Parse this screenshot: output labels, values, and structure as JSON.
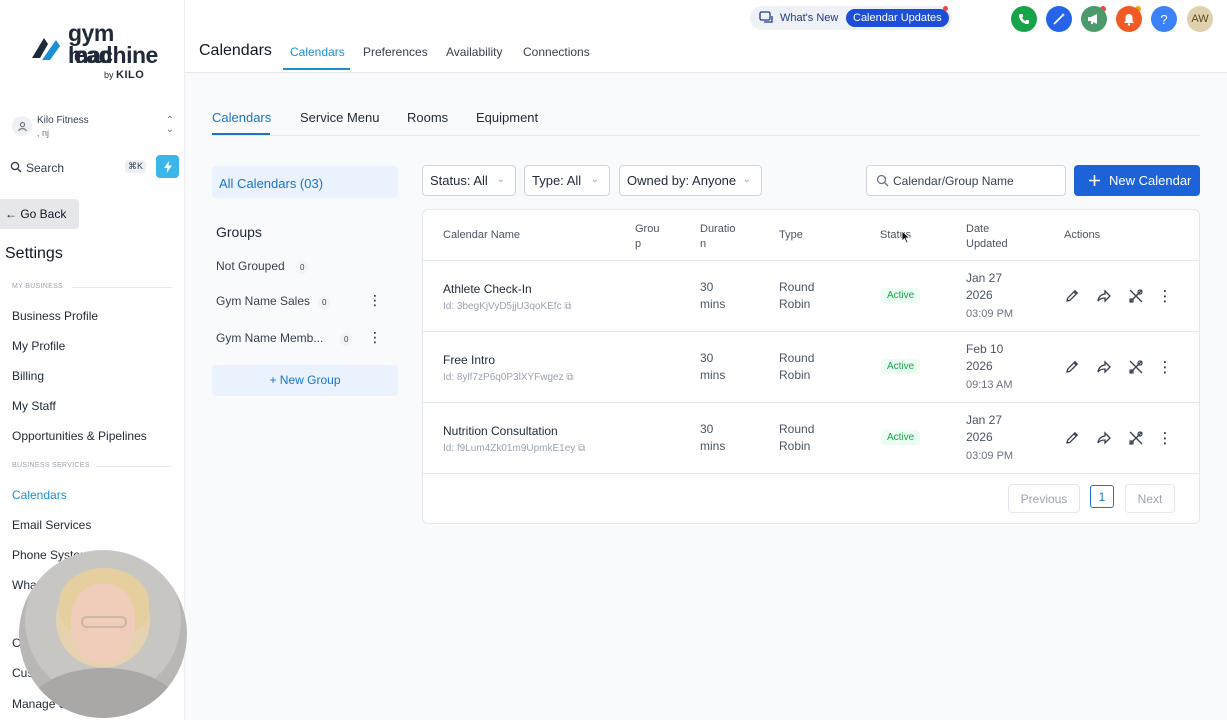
{
  "brand": {
    "line1": "gym lead",
    "line2": "machine",
    "by": "by",
    "kilo": "KILO"
  },
  "account": {
    "name": "Kilo Fitness",
    "location": ", nj"
  },
  "sidebar_search": {
    "label": "Search",
    "shortcut": "⌘K"
  },
  "go_back": "← Go Back",
  "settings_title": "Settings",
  "sections": {
    "my_business": "MY BUSINESS",
    "business_services": "BUSINESS SERVICES"
  },
  "nav": {
    "business_profile": "Business Profile",
    "my_profile": "My Profile",
    "billing": "Billing",
    "my_staff": "My Staff",
    "opportunities": "Opportunities & Pipelines",
    "calendars": "Calendars",
    "email_services": "Email Services",
    "phone_system": "Phone System",
    "whatsapp": "What",
    "c_item": "C",
    "cus_item": "Cus",
    "manage_item": "Manage S"
  },
  "topbar": {
    "title": "Calendars",
    "tabs": [
      "Calendars",
      "Preferences",
      "Availability",
      "Connections"
    ],
    "whats_new": "What's New",
    "calendar_updates": "Calendar Updates",
    "avatar_initials": "AW",
    "icons": [
      "phone-icon",
      "magic-wand-icon",
      "megaphone-icon",
      "bell-icon",
      "help-icon"
    ]
  },
  "subtabs": [
    "Calendars",
    "Service Menu",
    "Rooms",
    "Equipment"
  ],
  "left_panel": {
    "all_calendars": "All Calendars (03)",
    "groups_heading": "Groups",
    "groups": [
      {
        "name": "Not Grouped",
        "count": "0"
      },
      {
        "name": "Gym Name Sales",
        "count": "0"
      },
      {
        "name": "Gym Name Memb...",
        "count": "0"
      }
    ],
    "new_group": "+ New Group"
  },
  "filters": {
    "status": "Status: All",
    "type": "Type: All",
    "owned_by": "Owned by: Anyone",
    "search_placeholder": "Calendar/Group Name",
    "new_calendar": "New Calendar"
  },
  "table": {
    "headers": {
      "name": "Calendar Name",
      "group_1": "Grou",
      "group_2": "p",
      "duration_1": "Duratio",
      "duration_2": "n",
      "type": "Type",
      "status": "Status",
      "date_1": "Date",
      "date_2": "Updated",
      "actions": "Actions"
    },
    "rows": [
      {
        "name": "Athlete Check-In",
        "id": "Id: 3begKjVyD5jjU3qoKEfc",
        "dur1": "30",
        "dur2": "mins",
        "type1": "Round",
        "type2": "Robin",
        "status": "Active",
        "date1": "Jan 27",
        "date2": "2026",
        "time": "03:09 PM"
      },
      {
        "name": "Free Intro",
        "id": "Id: 8ylf7zP6q0P3lXYFwgez",
        "dur1": "30",
        "dur2": "mins",
        "type1": "Round",
        "type2": "Robin",
        "status": "Active",
        "date1": "Feb 10",
        "date2": "2026",
        "time": "09:13 AM"
      },
      {
        "name": "Nutrition Consultation",
        "id": "Id: f9Lum4Zk01m9UpmkE1ey",
        "dur1": "30",
        "dur2": "mins",
        "type1": "Round",
        "type2": "Robin",
        "status": "Active",
        "date1": "Jan 27",
        "date2": "2026",
        "time": "03:09 PM"
      }
    ]
  },
  "pagination": {
    "previous": "Previous",
    "page": "1",
    "next": "Next"
  },
  "colors": {
    "accent": "#1a73c9",
    "primary_button": "#1d63d8",
    "active_status": "#16a34a"
  }
}
